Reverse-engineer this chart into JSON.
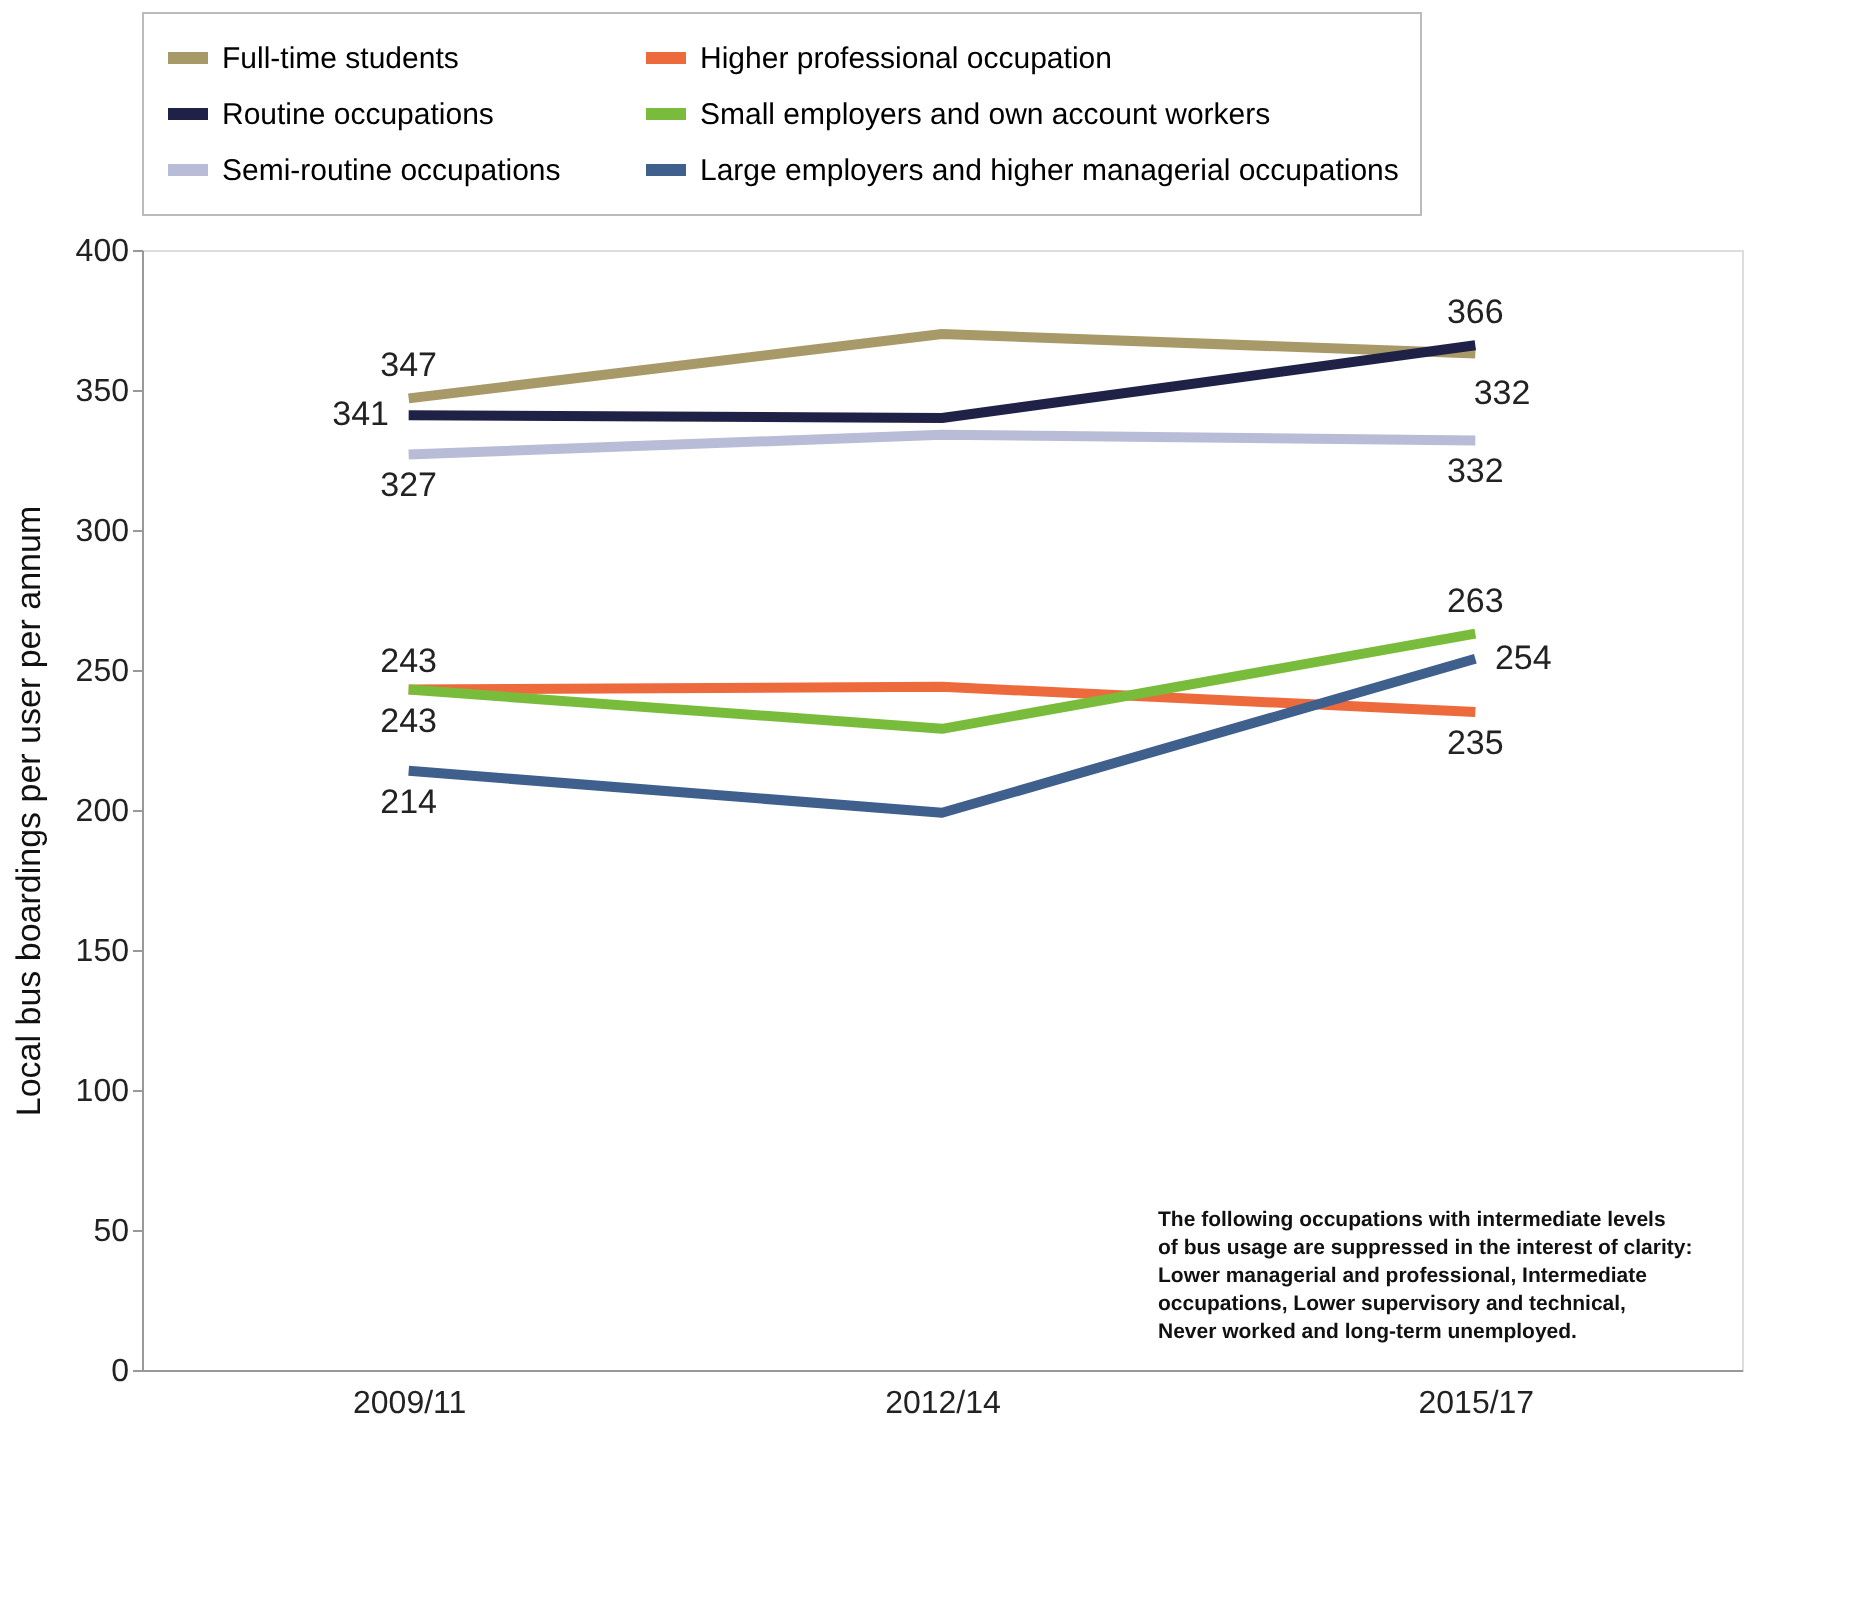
{
  "chart_data": {
    "type": "line",
    "ylabel": "Local bus boardings per user per annum",
    "categories": [
      "2009/11",
      "2012/14",
      "2015/17"
    ],
    "ylim": [
      0,
      400
    ],
    "yticks": [
      0,
      50,
      100,
      150,
      200,
      250,
      300,
      350,
      400
    ],
    "grid": false,
    "legend": "top",
    "marker": "none",
    "line_style": "solid",
    "series": [
      {
        "name": "Full-time students",
        "color": "#a89968",
        "values": [
          347,
          370,
          363
        ],
        "value_labels": [
          "347",
          null,
          null
        ]
      },
      {
        "name": "Higher professional occupation",
        "color": "#ec6a3c",
        "values": [
          243,
          244,
          235
        ],
        "value_labels": [
          "243",
          null,
          "235"
        ]
      },
      {
        "name": "Routine occupations",
        "color": "#1f2147",
        "values": [
          341,
          340,
          366
        ],
        "value_labels": [
          "341",
          null,
          "366"
        ]
      },
      {
        "name": "Small employers and own account workers",
        "color": "#79bc3c",
        "values": [
          243,
          229,
          263
        ],
        "value_labels": [
          "243",
          null,
          "263"
        ]
      },
      {
        "name": "Semi-routine occupations",
        "color": "#b8bcd6",
        "values": [
          327,
          334,
          332
        ],
        "value_labels": [
          "327",
          null,
          "332"
        ]
      },
      {
        "name": "Large employers and higher managerial occupations",
        "color": "#3f5f8c",
        "values": [
          214,
          199,
          254
        ],
        "value_labels": [
          "214",
          null,
          "254"
        ]
      }
    ],
    "annotations": [
      "332",
      "The following occupations with intermediate levels",
      "of bus usage are suppressed in the interest of clarity:",
      "Lower managerial and professional, Intermediate",
      "occupations,  Lower supervisory and technical,",
      "Never worked and long-term unemployed."
    ]
  }
}
